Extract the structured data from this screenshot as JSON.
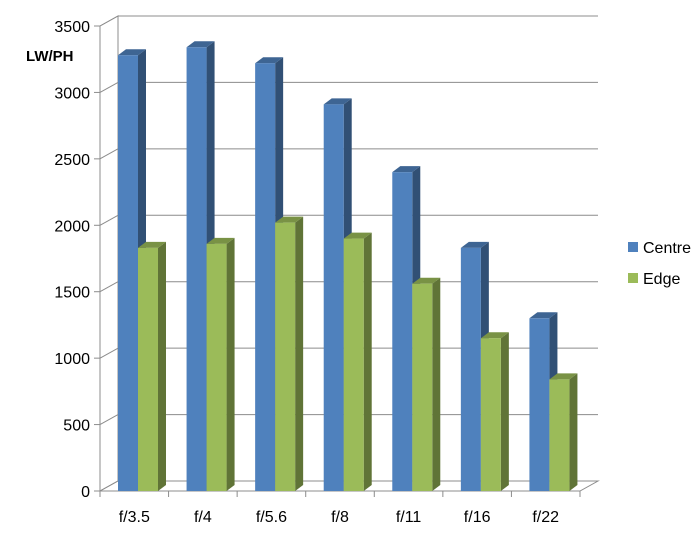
{
  "chart_data": {
    "type": "bar",
    "title": "",
    "xlabel": "",
    "ylabel": "LW/PH",
    "categories": [
      "f/3.5",
      "f/4",
      "f/5.6",
      "f/8",
      "f/11",
      "f/16",
      "f/22"
    ],
    "series": [
      {
        "name": "Centre",
        "values": [
          3280,
          3340,
          3220,
          2910,
          2400,
          1830,
          1300
        ],
        "color": "#4f81bd"
      },
      {
        "name": "Edge",
        "values": [
          1830,
          1860,
          2020,
          1900,
          1560,
          1150,
          840
        ],
        "color": "#9bbb59"
      }
    ],
    "ylim": [
      0,
      3500
    ],
    "yticks": [
      0,
      500,
      1000,
      1500,
      2000,
      2500,
      3000,
      3500
    ],
    "grid": true,
    "legend_position": "right",
    "style": "3d-clustered-column"
  }
}
